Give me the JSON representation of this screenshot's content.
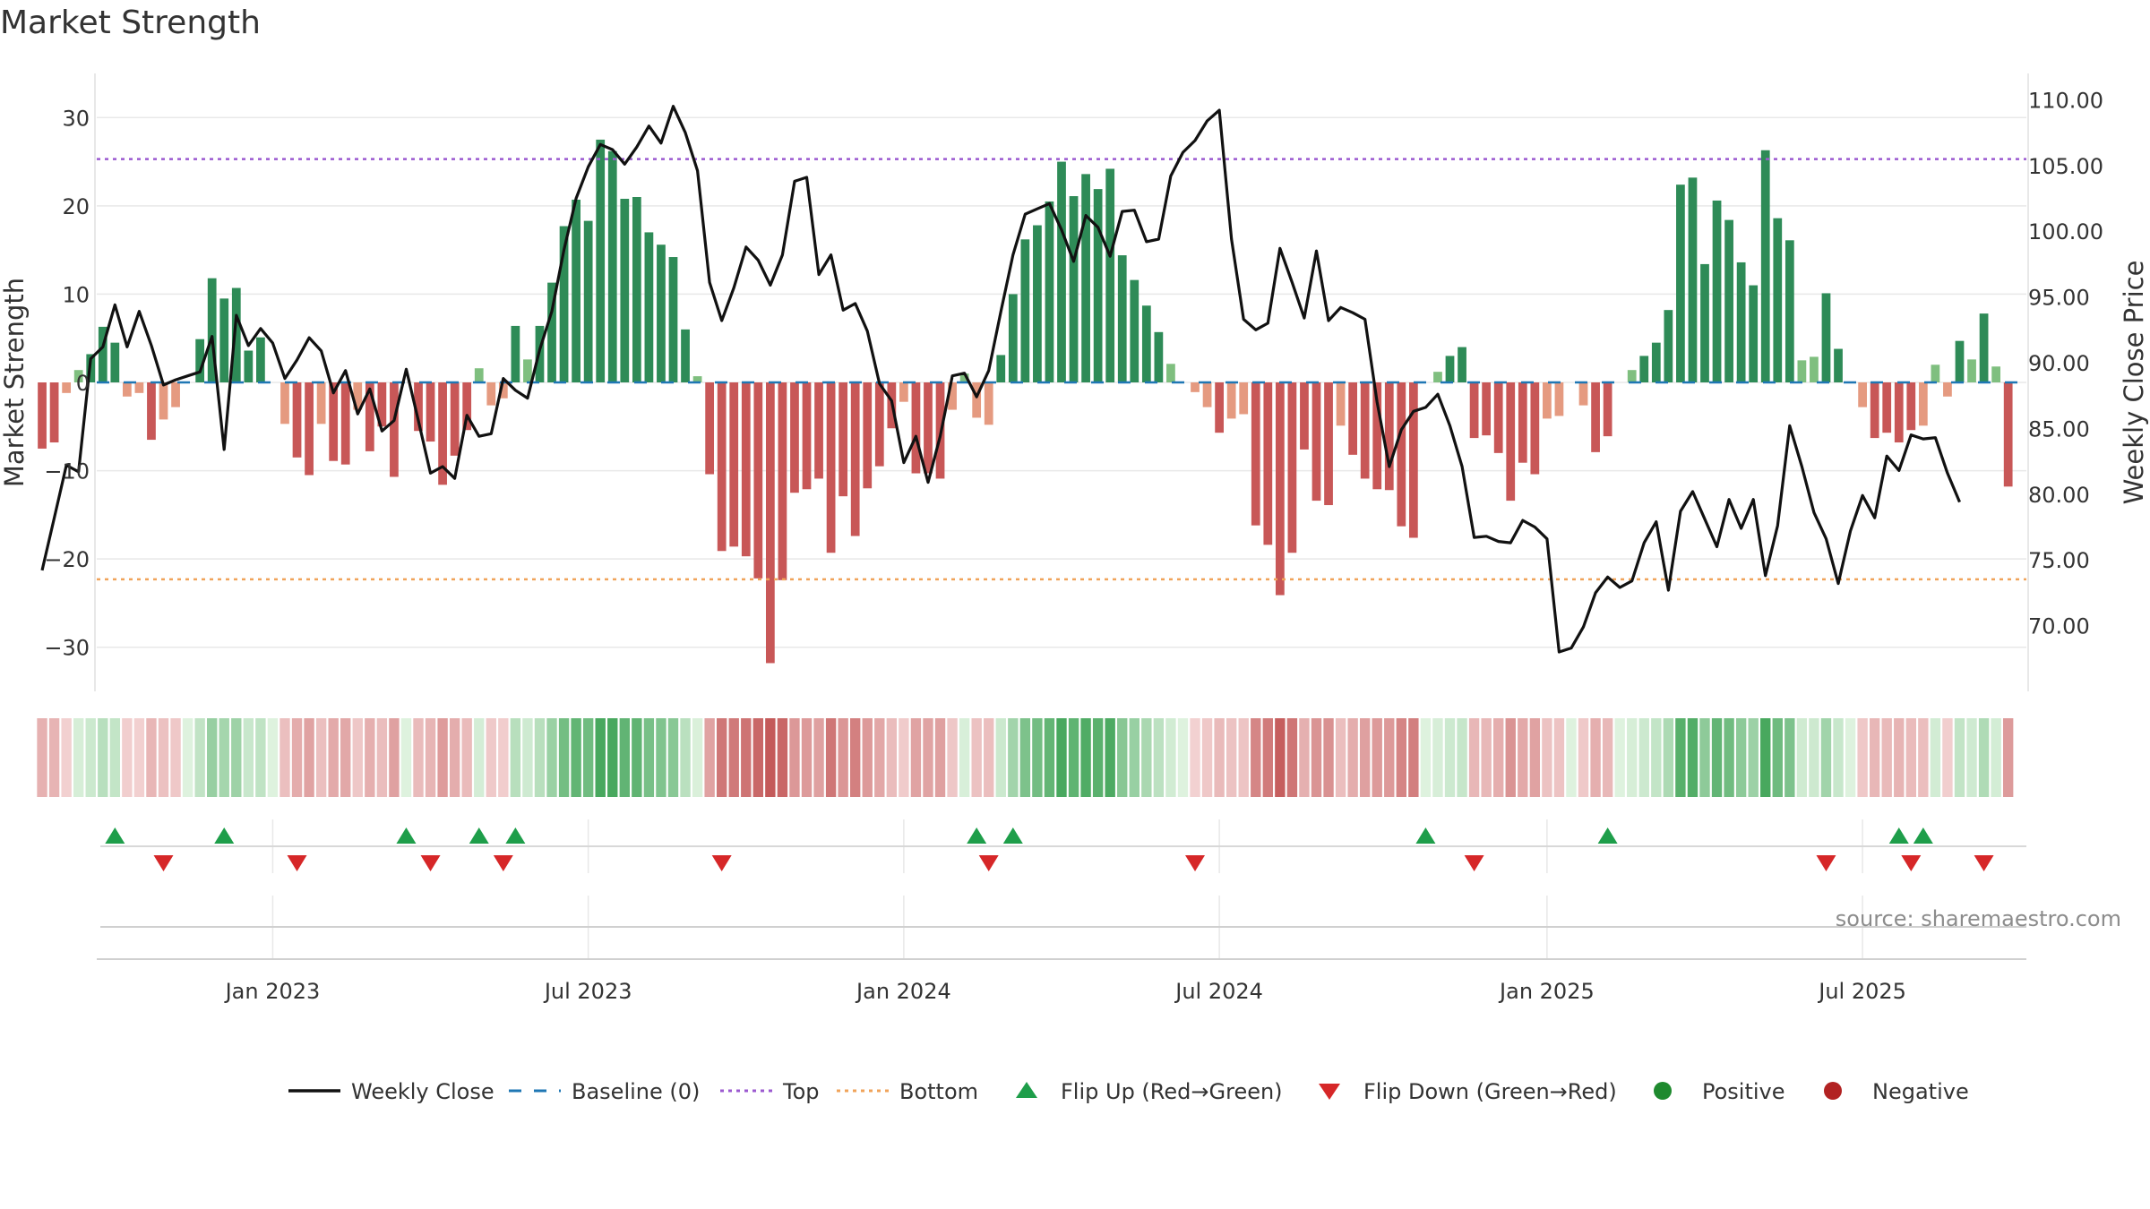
{
  "chart_data": {
    "type": "bar",
    "title": "Market Strength",
    "source": "source: sharemaestro.com",
    "ylabel_left": "Market Strength",
    "ylabel_right": "Weekly Close Price",
    "ylim_left": [
      -35,
      35
    ],
    "ylim_right": [
      65,
      112
    ],
    "left_ticks": [
      30,
      20,
      10,
      0,
      -10,
      -20,
      -30
    ],
    "left_tick_labels": [
      "30",
      "20",
      "10",
      "0",
      "−10",
      "−20",
      "−30"
    ],
    "right_ticks": [
      110,
      105,
      100,
      95,
      90,
      85,
      80,
      75,
      70
    ],
    "right_tick_labels": [
      "110.00",
      "105.00",
      "100.00",
      "95.00",
      "90.00",
      "85.00",
      "80.00",
      "75.00",
      "70.00"
    ],
    "x_ticks": [
      {
        "label": "Jan 2023",
        "week": 19
      },
      {
        "label": "Jul 2023",
        "week": 45
      },
      {
        "label": "Jan 2024",
        "week": 71
      },
      {
        "label": "Jul 2024",
        "week": 97
      },
      {
        "label": "Jan 2025",
        "week": 124
      },
      {
        "label": "Jul 2025",
        "week": 150
      }
    ],
    "x_range": [
      4.5,
      163.5
    ],
    "top_line": 25.3,
    "bottom_line": -22.3,
    "strength": [
      -7.5,
      -6.8,
      -1.2,
      1.4,
      3.2,
      6.3,
      4.5,
      -1.6,
      -1.2,
      -6.5,
      -4.2,
      -2.8,
      0,
      4.9,
      11.8,
      9.5,
      10.7,
      3.6,
      5.1,
      0,
      -4.7,
      -8.5,
      -10.5,
      -4.7,
      -8.9,
      -9.3,
      -3.1,
      -7.8,
      -5.0,
      -10.7,
      0,
      -5.5,
      -6.7,
      -11.6,
      -8.3,
      -5.4,
      1.6,
      -2.6,
      -1.8,
      6.4,
      2.6,
      6.4,
      11.3,
      17.7,
      20.7,
      18.3,
      27.5,
      26.2,
      20.8,
      21.0,
      17.0,
      15.6,
      14.2,
      6.0,
      0.7,
      -10.4,
      -19.1,
      -18.6,
      -19.7,
      -22.2,
      -31.8,
      -22.4,
      -12.5,
      -12.1,
      -10.9,
      -19.3,
      -12.9,
      -17.4,
      -12.0,
      -9.5,
      -5.2,
      -2.2,
      -10.3,
      -10.3,
      -10.9,
      -3.1,
      1.0,
      -4.0,
      -4.8,
      3.1,
      10.0,
      16.2,
      17.8,
      20.5,
      25.0,
      21.1,
      23.6,
      21.9,
      24.2,
      14.4,
      11.6,
      8.7,
      5.7,
      2.1,
      0,
      -1.1,
      -2.8,
      -5.7,
      -4.1,
      -3.6,
      -16.2,
      -18.4,
      -24.1,
      -19.3,
      -7.6,
      -13.4,
      -13.9,
      -4.9,
      -8.2,
      -10.9,
      -12.1,
      -12.2,
      -16.3,
      -17.6,
      0,
      1.2,
      3.0,
      4.0,
      -6.3,
      -6.0,
      -8.0,
      -13.4,
      -9.1,
      -10.4,
      -4.1,
      -3.8,
      0,
      -2.6,
      -7.9,
      -6.1,
      0,
      1.4,
      3.0,
      4.5,
      8.2,
      22.4,
      23.2,
      13.4,
      20.6,
      18.4,
      13.6,
      11.0,
      26.3,
      18.6,
      16.1,
      2.5,
      2.9,
      10.1,
      3.8,
      0,
      -2.8,
      -6.3,
      -5.7,
      -6.8,
      -5.4,
      -4.9,
      2.0,
      -1.6,
      4.7,
      2.6,
      7.8,
      1.8,
      -11.8
    ],
    "close": [
      74.2,
      78.2,
      82.2,
      81.7,
      90.3,
      91.2,
      94.4,
      91.2,
      93.9,
      91.3,
      88.3,
      88.7,
      89.0,
      89.3,
      92.0,
      83.4,
      93.6,
      91.3,
      92.6,
      91.5,
      88.8,
      90.2,
      91.9,
      90.9,
      87.7,
      89.4,
      86.1,
      88.0,
      84.8,
      85.6,
      89.5,
      85.6,
      81.6,
      82.1,
      81.2,
      86.0,
      84.4,
      84.6,
      88.8,
      87.9,
      87.3,
      91.0,
      93.9,
      98.6,
      102.5,
      104.9,
      106.6,
      106.2,
      105.1,
      106.4,
      108.0,
      106.7,
      109.5,
      107.5,
      104.6,
      96.1,
      93.2,
      95.7,
      98.8,
      97.8,
      95.9,
      98.2,
      103.8,
      104.1,
      96.7,
      98.2,
      94.0,
      94.5,
      92.4,
      88.4,
      87.1,
      82.4,
      84.4,
      80.9,
      84.4,
      89.0,
      89.2,
      87.4,
      89.4,
      93.9,
      98.2,
      101.3,
      101.7,
      102.1,
      100.1,
      97.7,
      101.2,
      100.3,
      98.1,
      101.5,
      101.6,
      99.2,
      99.4,
      104.2,
      106.0,
      106.9,
      108.4,
      109.2,
      99.4,
      93.3,
      92.5,
      93.0,
      98.7,
      96.1,
      93.4,
      98.5,
      93.2,
      94.2,
      93.8,
      93.3,
      87.0,
      82.1,
      84.9,
      86.3,
      86.6,
      87.6,
      85.2,
      82.1,
      76.7,
      76.8,
      76.4,
      76.3,
      78.0,
      77.5,
      76.6,
      68.0,
      68.3,
      69.9,
      72.5,
      73.7,
      72.9,
      73.4,
      76.3,
      77.9,
      72.7,
      78.7,
      80.2,
      78.1,
      76.0,
      79.6,
      77.4,
      79.6,
      73.8,
      77.6,
      85.2,
      82.1,
      78.6,
      76.6,
      73.2,
      77.2,
      79.9,
      78.2,
      82.9,
      81.8,
      84.5,
      84.2,
      84.3,
      81.6,
      79.4
    ],
    "flip_up": [
      6,
      15,
      30,
      36,
      39,
      77,
      80,
      114,
      129,
      153,
      155
    ],
    "flip_down": [
      10,
      21,
      32,
      38,
      56,
      78,
      95,
      118,
      147,
      154,
      160
    ],
    "legend": [
      {
        "label": "Weekly Close",
        "kind": "line",
        "color": "#111111"
      },
      {
        "label": "Baseline (0)",
        "kind": "dash",
        "color": "#1f77b4"
      },
      {
        "label": "Top",
        "kind": "dot",
        "color": "#9b59d0"
      },
      {
        "label": "Bottom",
        "kind": "dot",
        "color": "#f0a35a"
      },
      {
        "label": "Flip Up (Red→Green)",
        "kind": "tri-up",
        "color": "#1e9e4a"
      },
      {
        "label": "Flip Down (Green→Red)",
        "kind": "tri-down",
        "color": "#d62728"
      },
      {
        "label": "Positive",
        "kind": "circle",
        "color": "#1e8a2e"
      },
      {
        "label": "Negative",
        "kind": "circle",
        "color": "#b22222"
      }
    ],
    "colors": {
      "strong_pos": "#2e8b57",
      "weak_pos": "#7fbf7f",
      "strong_neg": "#c85757",
      "weak_neg": "#e59a80",
      "price_line": "#111111",
      "baseline": "#1f77b4",
      "top": "#9b59d0",
      "bottom": "#f0a35a",
      "flip_up": "#1e9e4a",
      "flip_down": "#d62728",
      "grid": "#e8e8e8"
    }
  }
}
